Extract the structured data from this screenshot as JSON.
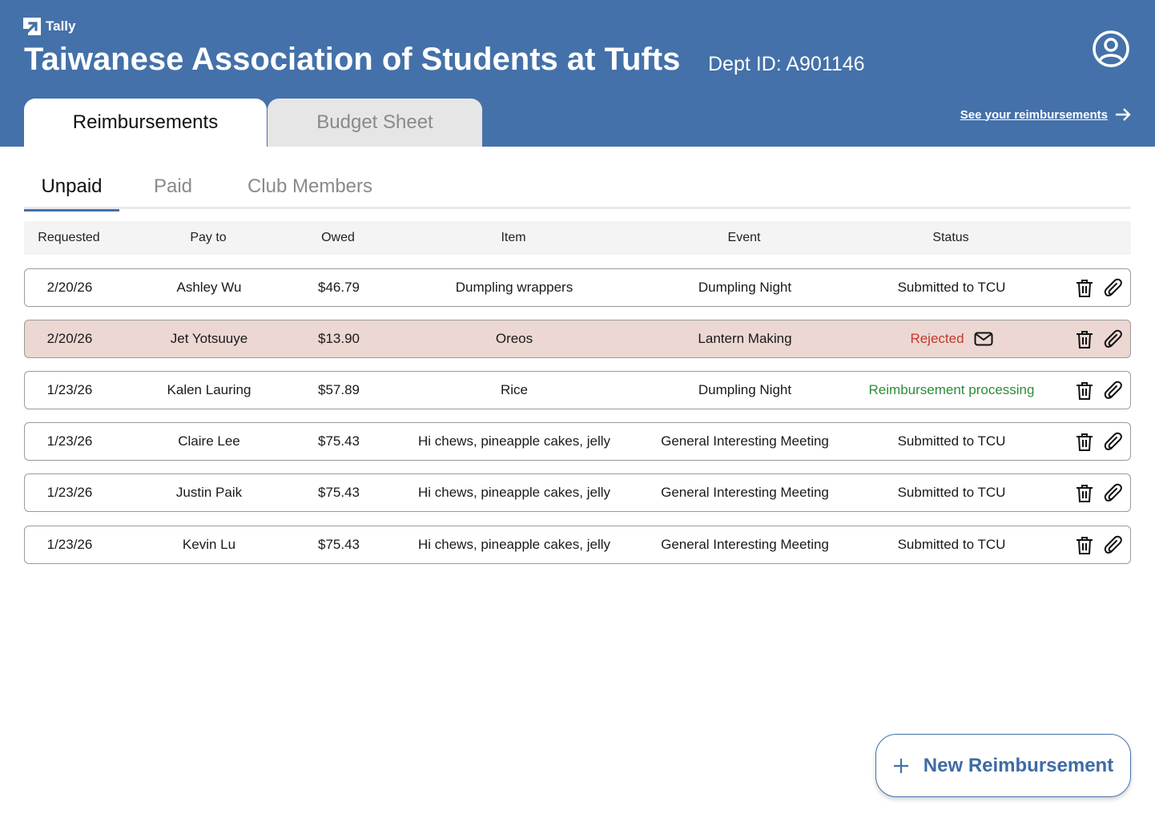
{
  "app": {
    "brand": "Tally",
    "brand_icon": "arrow-logo-icon"
  },
  "header": {
    "org_title": "Taiwanese Association of Students at Tufts",
    "dept_id": "Dept ID: A901146",
    "see_link": "See your reimbursements",
    "profile_icon": "user-circle-icon",
    "bg_color": "#4471a9"
  },
  "main_tabs": [
    {
      "label": "Reimbursements",
      "active": true
    },
    {
      "label": "Budget Sheet",
      "active": false
    }
  ],
  "sub_tabs": [
    {
      "label": "Unpaid",
      "active": true
    },
    {
      "label": "Paid",
      "active": false
    },
    {
      "label": "Club Members",
      "active": false
    }
  ],
  "table": {
    "columns": [
      "Requested",
      "Pay to",
      "Owed",
      "Item",
      "Event",
      "Status"
    ],
    "rows": [
      {
        "requested": "2/20/26",
        "pay_to": "Ashley Wu",
        "owed": "$46.79",
        "item": "Dumpling wrappers",
        "event": "Dumpling Night",
        "status": "Submitted to TCU"
      },
      {
        "requested": "2/20/26",
        "pay_to": "Jet Yotsuuye",
        "owed": "$13.90",
        "item": "Oreos",
        "event": "Lantern Making",
        "status": "Rejected"
      },
      {
        "requested": "1/23/26",
        "pay_to": "Kalen Lauring",
        "owed": "$57.89",
        "item": "Rice",
        "event": "Dumpling Night",
        "status": "Reimbursement processing"
      },
      {
        "requested": "1/23/26",
        "pay_to": "Claire Lee",
        "owed": "$75.43",
        "item": "Hi chews, pineapple cakes, jelly",
        "event": "General Interesting Meeting",
        "status": "Submitted to TCU"
      },
      {
        "requested": "1/23/26",
        "pay_to": "Justin Paik",
        "owed": "$75.43",
        "item": "Hi chews, pineapple cakes, jelly",
        "event": "General Interesting Meeting",
        "status": "Submitted to TCU"
      },
      {
        "requested": "1/23/26",
        "pay_to": "Kevin Lu",
        "owed": "$75.43",
        "item": "Hi chews, pineapple cakes, jelly",
        "event": "General Interesting Meeting",
        "status": "Submitted to TCU"
      }
    ]
  },
  "status_colors": {
    "rejected": "#c0392b",
    "processing": "#2e8b3a",
    "rejected_row_bg": "#ecd7d2"
  },
  "row_icons": [
    "trash-icon",
    "paperclip-icon"
  ],
  "new_button": {
    "label": "New Reimbursement",
    "icon": "plus-icon"
  }
}
